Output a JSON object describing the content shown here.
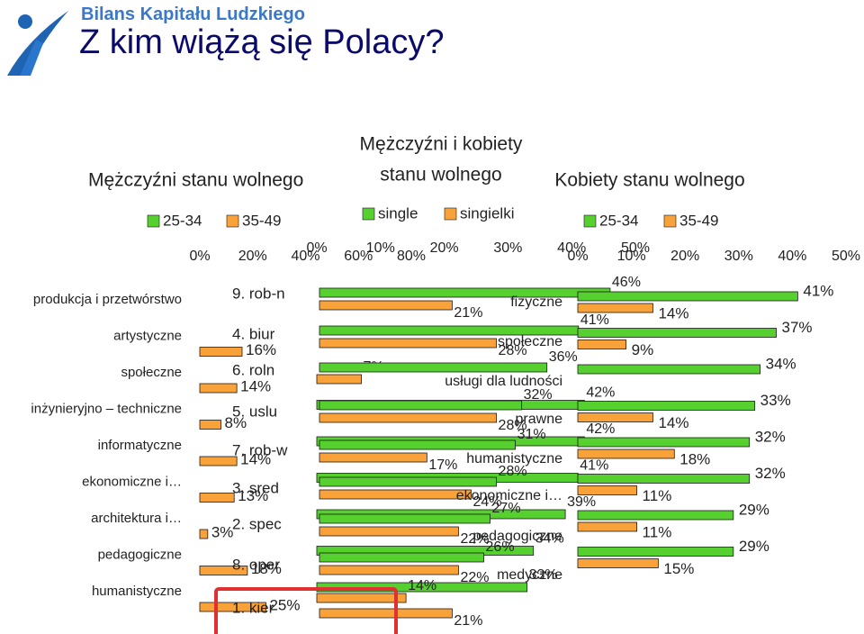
{
  "brand": "Bilans Kapitału Ludzkiego",
  "title": "Z kim wiążą się Polacy?",
  "colors": {
    "series_a": "#55d02e",
    "series_b": "#f9a23a",
    "stroke": "#1a1a1a",
    "highlight": "#e03030"
  },
  "chart_data": [
    {
      "type": "bar",
      "orientation": "horizontal",
      "title": "Mężczyźni stanu wolnego",
      "categories": [
        "produkcja i przetwórstwo",
        "artystyczne",
        "społeczne",
        "inżynieryjno – techniczne",
        "informatyczne",
        "ekonomiczne i…",
        "architektura i…",
        "pedagogiczne",
        "humanistyczne"
      ],
      "series": [
        {
          "name": "25-34",
          "values": [
            null,
            null,
            null,
            null,
            null,
            null,
            null,
            null,
            null
          ]
        },
        {
          "name": "35-49",
          "values": [
            null,
            16,
            14,
            8,
            14,
            13,
            3,
            18,
            25
          ]
        }
      ],
      "value_labels": [
        [
          "",
          "",
          "",
          "",
          "",
          "",
          "",
          "",
          ""
        ],
        [
          "",
          "16%",
          "14%",
          "8%",
          "14%",
          "13%",
          "3%",
          "18%",
          "25%"
        ]
      ],
      "x_ticks": [
        "0%",
        "20%",
        "40%",
        "60%",
        "80%"
      ],
      "xlim": [
        0,
        80
      ],
      "legend_position": "top"
    },
    {
      "type": "bar",
      "orientation": "horizontal",
      "title": "Mężczyźni i kobiety stanu wolnego",
      "categories": [
        "9. rob-n",
        "4. biur",
        "6. roln",
        "5. uslu",
        "7. rob-w",
        "3. sred",
        "2. spec",
        "8. oper",
        "1. kier"
      ],
      "series": [
        {
          "name": "single",
          "values": [
            null,
            null,
            null,
            42,
            42,
            41,
            39,
            34,
            33
          ]
        },
        {
          "name": "singielki",
          "values": [
            null,
            null,
            7,
            null,
            null,
            null,
            null,
            null,
            14
          ]
        }
      ],
      "value_labels": [
        [
          "",
          "",
          "",
          "42%",
          "42%",
          "41%",
          "39%",
          "34%",
          "33%"
        ],
        [
          "",
          "",
          "7%",
          "",
          "",
          "",
          "",
          "",
          "14%"
        ]
      ],
      "x_ticks": [
        "0%",
        "10%",
        "20%",
        "30%",
        "40%",
        "50%"
      ],
      "xlim": [
        0,
        50
      ],
      "legend_position": "top"
    },
    {
      "type": "bar",
      "orientation": "horizontal",
      "title": "",
      "categories": [
        "fizyczne",
        "społeczne",
        "usługi dla ludności",
        "prawne",
        "humanistyczne",
        "ekonomiczne i…",
        "pedagogiczne",
        "medyczne",
        ""
      ],
      "series": [
        {
          "name": "single",
          "values": [
            46,
            41,
            36,
            32,
            31,
            28,
            27,
            26,
            null
          ]
        },
        {
          "name": "singielki",
          "values": [
            21,
            28,
            null,
            28,
            17,
            24,
            22,
            22,
            21
          ]
        }
      ],
      "value_labels": [
        [
          "46%",
          "41%",
          "36%",
          "32%",
          "31%",
          "28%",
          "27%",
          "26%",
          ""
        ],
        [
          "21%",
          "28%",
          "",
          "28%",
          "17%",
          "24%",
          "22%",
          "22%",
          "21%"
        ]
      ],
      "xlim": [
        0,
        50
      ]
    },
    {
      "type": "bar",
      "orientation": "horizontal",
      "title": "Kobiety stanu wolnego",
      "categories": [
        "produkcja i przetwórstwo",
        "artystyczne",
        "społeczne",
        "inżynieryjno – techniczne",
        "informatyczne",
        "ekonomiczne i…",
        "architektura i…",
        "pedagogiczne",
        "humanistyczne"
      ],
      "series": [
        {
          "name": "25-34",
          "values": [
            41,
            37,
            34,
            33,
            32,
            32,
            29,
            29,
            null
          ]
        },
        {
          "name": "35-49",
          "values": [
            14,
            9,
            null,
            14,
            18,
            11,
            11,
            15,
            null
          ]
        }
      ],
      "value_labels": [
        [
          "41%",
          "37%",
          "34%",
          "33%",
          "32%",
          "32%",
          "29%",
          "29%",
          ""
        ],
        [
          "14%",
          "9%",
          "",
          "14%",
          "18%",
          "11%",
          "11%",
          "15%",
          ""
        ]
      ],
      "x_ticks": [
        "0%",
        "10%",
        "20%",
        "30%",
        "40%",
        "50%"
      ],
      "xlim": [
        0,
        50
      ],
      "legend_position": "top"
    }
  ]
}
